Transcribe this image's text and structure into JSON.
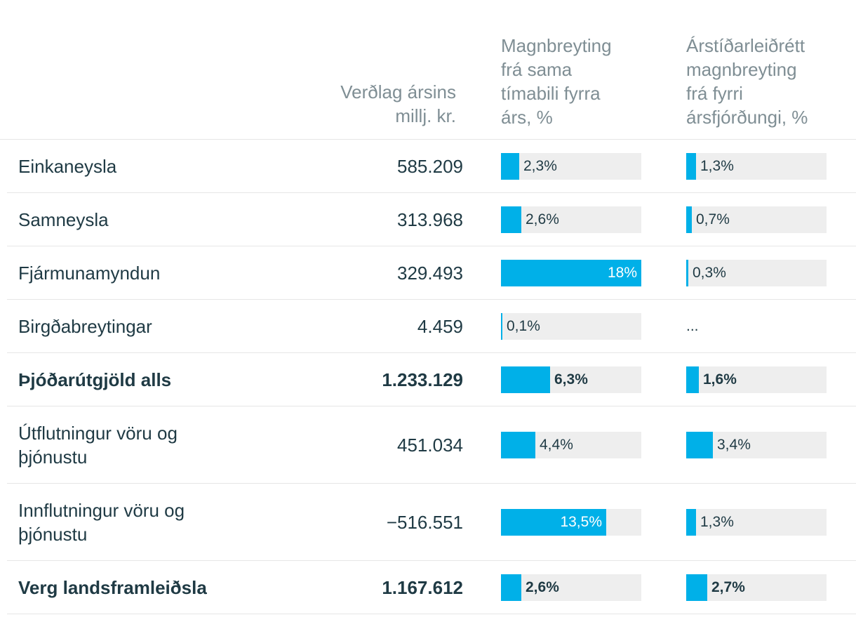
{
  "headers": {
    "label": "",
    "value": [
      "Verðlag ársins",
      "millj. kr."
    ],
    "yoy": [
      "Magnbreyting",
      "frá sama",
      "tímabili fyrra",
      "árs, %"
    ],
    "qoq": [
      "Árstíðarleiðrétt",
      "magnbreyting",
      "frá fyrri",
      "ársfjórðungi, %"
    ]
  },
  "colors": {
    "bar": "#00b0e8",
    "track": "#eeeeee",
    "text": "#1f3a44",
    "header_text": "#7f8e94"
  },
  "chart_data": {
    "type": "table",
    "bar_scale_max": 18,
    "rows": [
      {
        "label": "Einkaneysla",
        "value": "585.209",
        "yoy": 2.3,
        "yoy_label": "2,3%",
        "qoq": 1.3,
        "qoq_label": "1,3%",
        "bold": false
      },
      {
        "label": "Samneysla",
        "value": "313.968",
        "yoy": 2.6,
        "yoy_label": "2,6%",
        "qoq": 0.7,
        "qoq_label": "0,7%",
        "bold": false
      },
      {
        "label": "Fjármunamyndun",
        "value": "329.493",
        "yoy": 18,
        "yoy_label": "18%",
        "qoq": 0.3,
        "qoq_label": "0,3%",
        "bold": false
      },
      {
        "label": "Birgðabreytingar",
        "value": "4.459",
        "yoy": 0.1,
        "yoy_label": "0,1%",
        "qoq": null,
        "qoq_label": "...",
        "bold": false
      },
      {
        "label": "Þjóðarútgjöld alls",
        "value": "1.233.129",
        "yoy": 6.3,
        "yoy_label": "6,3%",
        "qoq": 1.6,
        "qoq_label": "1,6%",
        "bold": true
      },
      {
        "label": "Útflutningur vöru og þjónustu",
        "value": "451.034",
        "yoy": 4.4,
        "yoy_label": "4,4%",
        "qoq": 3.4,
        "qoq_label": "3,4%",
        "bold": false
      },
      {
        "label": "Innflutningur vöru og þjónustu",
        "value": "−516.551",
        "yoy": 13.5,
        "yoy_label": "13,5%",
        "qoq": 1.3,
        "qoq_label": "1,3%",
        "bold": false
      },
      {
        "label": "Verg landsframleiðsla",
        "value": "1.167.612",
        "yoy": 2.6,
        "yoy_label": "2,6%",
        "qoq": 2.7,
        "qoq_label": "2,7%",
        "bold": true
      }
    ]
  }
}
